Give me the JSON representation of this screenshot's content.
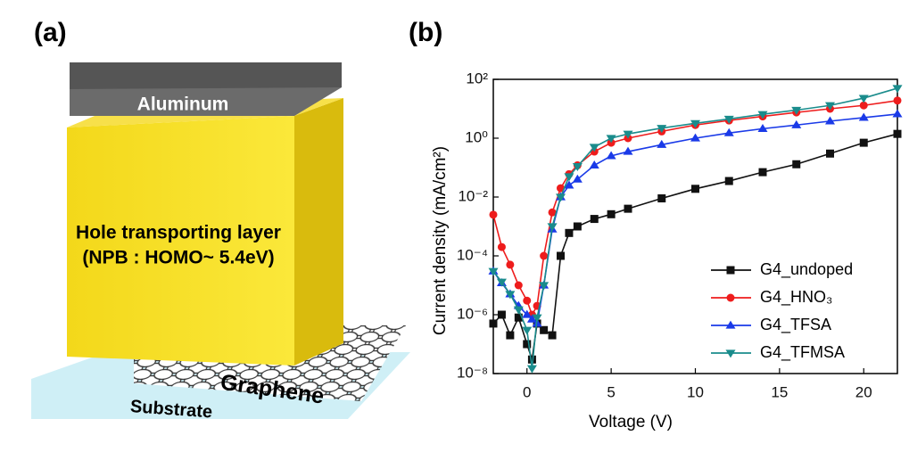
{
  "panels": [
    "(a)",
    "(b)"
  ],
  "diagram": {
    "top_layer": "Aluminum",
    "middle_layer": [
      "Hole transporting layer",
      "(NPB : HOMO~ 5.4eV)"
    ],
    "electrode": "Graphene",
    "base": "Substrate"
  },
  "chart_data": {
    "type": "line",
    "x_label": "Voltage (V)",
    "y_label": "Current density (mA/cm²)",
    "x": [
      -2,
      -1.5,
      -1,
      -0.5,
      0,
      0.3,
      0.6,
      1,
      1.5,
      2,
      2.5,
      3,
      4,
      5,
      6,
      8,
      10,
      12,
      14,
      16,
      18,
      20,
      22
    ],
    "series": [
      {
        "name": "G4_undoped",
        "color": "#111111",
        "marker": "square",
        "values": [
          5e-07,
          1e-06,
          2e-07,
          8e-07,
          1e-07,
          3e-08,
          5e-07,
          3e-07,
          2e-07,
          0.0001,
          0.0006,
          0.001,
          0.0018,
          0.0026,
          0.004,
          0.009,
          0.019,
          0.035,
          0.07,
          0.13,
          0.3,
          0.7,
          1.4
        ]
      },
      {
        "name": "G4_HNO₃",
        "color": "#ee1c1c",
        "marker": "circle",
        "values": [
          0.0025,
          0.0002,
          5e-05,
          1e-05,
          3e-06,
          1e-06,
          2e-06,
          0.0001,
          0.003,
          0.02,
          0.06,
          0.12,
          0.35,
          0.7,
          1,
          1.7,
          2.8,
          4,
          5.5,
          7.5,
          10,
          13,
          19
        ]
      },
      {
        "name": "G4_TFSA",
        "color": "#1a3ae8",
        "marker": "triangle-up",
        "values": [
          3e-05,
          1.2e-05,
          5e-06,
          2e-06,
          1e-06,
          7e-07,
          5e-07,
          1e-05,
          0.0008,
          0.01,
          0.025,
          0.04,
          0.12,
          0.25,
          0.35,
          0.6,
          1,
          1.5,
          2.1,
          2.8,
          3.8,
          5,
          6.6
        ]
      },
      {
        "name": "G4_TFMSA",
        "color": "#1a8c8c",
        "marker": "triangle-down",
        "values": [
          3e-05,
          1.3e-05,
          5e-06,
          1.5e-06,
          3e-07,
          1.5e-08,
          8e-07,
          1e-05,
          0.001,
          0.01,
          0.05,
          0.11,
          0.5,
          1,
          1.4,
          2.2,
          3.2,
          4.5,
          6.5,
          9,
          13,
          23,
          50
        ]
      }
    ],
    "xlim": [
      -2,
      22
    ],
    "xticks": [
      0,
      5,
      10,
      15,
      20
    ],
    "ylim": [
      1e-08,
      100
    ],
    "log_y": true,
    "yticks": [
      {
        "value": 1e-08,
        "label": "10⁻⁸"
      },
      {
        "value": 1e-06,
        "label": "10⁻⁶"
      },
      {
        "value": 0.0001,
        "label": "10⁻⁴"
      },
      {
        "value": 0.01,
        "label": "10⁻²"
      },
      {
        "value": 1,
        "label": "10⁰"
      },
      {
        "value": 100,
        "label": "10²"
      }
    ],
    "legend": "lower-right"
  }
}
